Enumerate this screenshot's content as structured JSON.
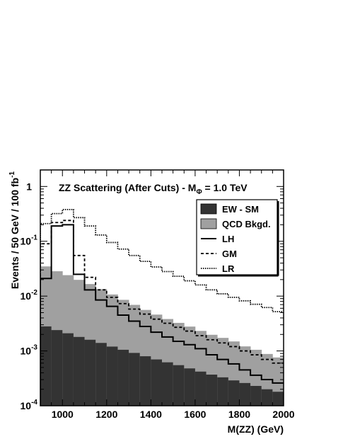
{
  "chart_data": {
    "type": "area",
    "title": "ZZ Scattering (After Cuts) - M",
    "title_subscript": "Φ",
    "title_suffix": " = 1.0 TeV",
    "xlabel": "M(ZZ) (GeV)",
    "ylabel": "Events / 50 GeV / 100 fb",
    "ylabel_superscript": "-1",
    "xlim": [
      900,
      2000
    ],
    "ylim": [
      0.0001,
      2
    ],
    "yscale": "log",
    "grid": false,
    "legend_position": "top-right",
    "x_ticks": [
      "1000",
      "1200",
      "1400",
      "1600",
      "1800",
      "2000"
    ],
    "x_tick_values": [
      1000,
      1200,
      1400,
      1600,
      1800,
      2000
    ],
    "y_ticks": [
      {
        "base": "10",
        "exp": "-4",
        "value": 0.0001
      },
      {
        "base": "10",
        "exp": "-3",
        "value": 0.001
      },
      {
        "base": "10",
        "exp": "-2",
        "value": 0.01
      },
      {
        "base": "10",
        "exp": "-1",
        "value": 0.1
      },
      {
        "base": "1",
        "exp": "",
        "value": 1
      }
    ],
    "bin_edges": [
      900,
      950,
      1000,
      1050,
      1100,
      1150,
      1200,
      1250,
      1300,
      1350,
      1400,
      1450,
      1500,
      1550,
      1600,
      1650,
      1700,
      1750,
      1800,
      1850,
      1900,
      1950,
      2000
    ],
    "series": [
      {
        "name": "EW - SM",
        "style": "fill-dark",
        "color": "#333333",
        "values": [
          0.0028,
          0.0024,
          0.0021,
          0.0018,
          0.0016,
          0.0014,
          0.0012,
          0.00105,
          0.00092,
          0.0008,
          0.0007,
          0.00062,
          0.00055,
          0.00048,
          0.00042,
          0.00037,
          0.00033,
          0.00029,
          0.00026,
          0.00023,
          0.0002,
          0.00018
        ]
      },
      {
        "name": "QCD Bkgd.",
        "style": "fill-light",
        "color": "#a0a0a0",
        "values": [
          0.032,
          0.026,
          0.022,
          0.018,
          0.015,
          0.012,
          0.0095,
          0.0075,
          0.006,
          0.0048,
          0.0039,
          0.0032,
          0.0027,
          0.0023,
          0.0019,
          0.0016,
          0.0014,
          0.0012,
          0.00095,
          0.00082,
          0.00068,
          0.00058
        ]
      },
      {
        "name": "LH",
        "style": "solid",
        "color": "#000000",
        "values": [
          0.021,
          0.19,
          0.2,
          0.025,
          0.013,
          0.0085,
          0.0065,
          0.0045,
          0.0035,
          0.0028,
          0.0022,
          0.0018,
          0.0015,
          0.0013,
          0.0011,
          0.00085,
          0.0007,
          0.00058,
          0.00045,
          0.00036,
          0.0003,
          0.00026
        ]
      },
      {
        "name": "GM",
        "style": "dashed",
        "color": "#000000",
        "values": [
          0.09,
          0.22,
          0.24,
          0.055,
          0.022,
          0.013,
          0.0095,
          0.0073,
          0.0058,
          0.0047,
          0.0038,
          0.0032,
          0.0027,
          0.0023,
          0.0019,
          0.0016,
          0.0014,
          0.0012,
          0.001,
          0.00085,
          0.0007,
          0.0006
        ]
      },
      {
        "name": "LR",
        "style": "dotted",
        "color": "#000000",
        "values": [
          0.21,
          0.32,
          0.38,
          0.27,
          0.19,
          0.13,
          0.095,
          0.072,
          0.055,
          0.043,
          0.034,
          0.028,
          0.023,
          0.019,
          0.016,
          0.013,
          0.011,
          0.0095,
          0.0082,
          0.0071,
          0.0062,
          0.0052
        ]
      }
    ]
  }
}
